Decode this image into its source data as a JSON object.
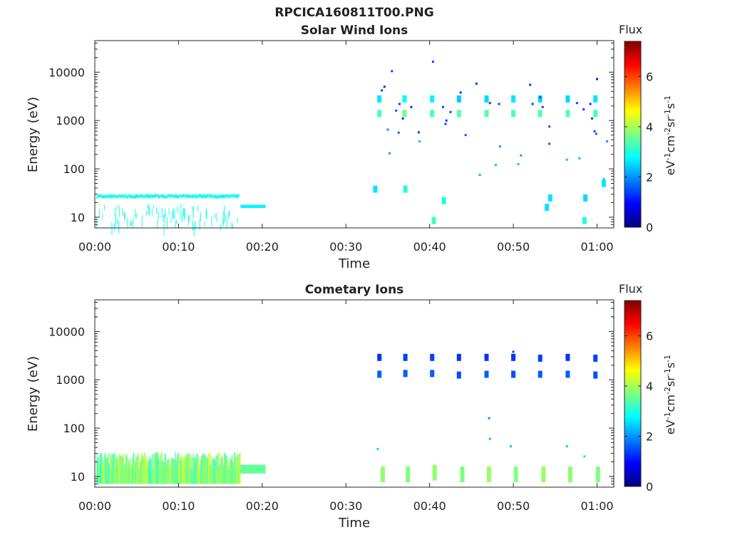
{
  "figure_title": "RPCICA160811T00.PNG",
  "colors": {
    "axis": "#262626",
    "colormap": [
      "#00007f",
      "#0000ff",
      "#007fff",
      "#00ffff",
      "#7fff7f",
      "#ffff00",
      "#ff7f00",
      "#ff0000",
      "#7f0000"
    ]
  },
  "chart_data": [
    {
      "type": "heatmap",
      "title": "Solar Wind Ions",
      "xlabel": "Time",
      "ylabel": "Energy (eV)",
      "xlim_minutes": [
        0,
        62
      ],
      "ylim": [
        6,
        45000
      ],
      "y_scale": "log",
      "x_ticks": [
        {
          "v": 0,
          "label": "00:00"
        },
        {
          "v": 10,
          "label": "00:10"
        },
        {
          "v": 20,
          "label": "00:20"
        },
        {
          "v": 30,
          "label": "00:30"
        },
        {
          "v": 40,
          "label": "00:40"
        },
        {
          "v": 50,
          "label": "00:50"
        },
        {
          "v": 60,
          "label": "01:00"
        }
      ],
      "y_ticks": [
        {
          "v": 10,
          "label": "10"
        },
        {
          "v": 100,
          "label": "100"
        },
        {
          "v": 1000,
          "label": "1000"
        },
        {
          "v": 10000,
          "label": "10000"
        }
      ],
      "colorbar": {
        "title": "Flux",
        "label_base": "eV",
        "label_units": [
          "-1",
          "cm",
          "-2",
          "sr",
          "-1",
          "s",
          "-1"
        ],
        "range": [
          0,
          7.4
        ],
        "ticks": [
          {
            "v": 0,
            "label": "0"
          },
          {
            "v": 2,
            "label": "2"
          },
          {
            "v": 4,
            "label": "4"
          },
          {
            "v": 6,
            "label": "6"
          }
        ]
      },
      "low_energy_band": {
        "t_start": 0.2,
        "t_end": 17.2,
        "energy_center": 27,
        "flux": 2.9
      },
      "plateau": {
        "t_start": 17.4,
        "t_end": 20.4,
        "energy_low": 15.5,
        "energy_high": 18,
        "flux": 2.7
      },
      "scan_cells": [
        {
          "t": 34.0,
          "e": 1400,
          "f": 3.3
        },
        {
          "t": 34.0,
          "e": 2800,
          "f": 2.6
        },
        {
          "t": 37.0,
          "e": 1400,
          "f": 3.6
        },
        {
          "t": 37.0,
          "e": 2800,
          "f": 2.8
        },
        {
          "t": 40.3,
          "e": 1400,
          "f": 3.3
        },
        {
          "t": 40.3,
          "e": 2800,
          "f": 2.7
        },
        {
          "t": 43.5,
          "e": 1400,
          "f": 3.4
        },
        {
          "t": 43.5,
          "e": 2800,
          "f": 2.4
        },
        {
          "t": 46.8,
          "e": 1400,
          "f": 3.4
        },
        {
          "t": 46.8,
          "e": 2800,
          "f": 2.5
        },
        {
          "t": 50.0,
          "e": 1400,
          "f": 3.3
        },
        {
          "t": 50.0,
          "e": 2800,
          "f": 2.6
        },
        {
          "t": 53.2,
          "e": 1400,
          "f": 3.4
        },
        {
          "t": 53.2,
          "e": 2800,
          "f": 2.5
        },
        {
          "t": 56.5,
          "e": 1400,
          "f": 3.4
        },
        {
          "t": 56.5,
          "e": 2800,
          "f": 2.5
        },
        {
          "t": 59.8,
          "e": 1400,
          "f": 3.3
        },
        {
          "t": 59.8,
          "e": 2800,
          "f": 2.6
        },
        {
          "t": 33.5,
          "e": 38,
          "f": 2.6
        },
        {
          "t": 37.1,
          "e": 38,
          "f": 3.0
        },
        {
          "t": 40.5,
          "e": 8.5,
          "f": 3.2
        },
        {
          "t": 41.7,
          "e": 22,
          "f": 3.0
        },
        {
          "t": 54.0,
          "e": 16,
          "f": 2.6
        },
        {
          "t": 54.4,
          "e": 25,
          "f": 2.6
        },
        {
          "t": 58.5,
          "e": 8.5,
          "f": 3.0
        },
        {
          "t": 58.6,
          "e": 25,
          "f": 2.5
        },
        {
          "t": 60.8,
          "e": 50,
          "f": 2.6
        }
      ],
      "points": [
        {
          "t": 34.3,
          "e": 4200,
          "f": 1.4
        },
        {
          "t": 34.6,
          "e": 5000,
          "f": 1.2
        },
        {
          "t": 35.5,
          "e": 10500,
          "f": 1.4
        },
        {
          "t": 35.0,
          "e": 650,
          "f": 2.0
        },
        {
          "t": 35.2,
          "e": 210,
          "f": 2.1
        },
        {
          "t": 36.0,
          "e": 1600,
          "f": 1.5
        },
        {
          "t": 36.4,
          "e": 2200,
          "f": 1.4
        },
        {
          "t": 36.8,
          "e": 1100,
          "f": 1.3
        },
        {
          "t": 36.3,
          "e": 560,
          "f": 1.6
        },
        {
          "t": 37.8,
          "e": 1900,
          "f": 1.3
        },
        {
          "t": 38.7,
          "e": 570,
          "f": 1.4
        },
        {
          "t": 38.8,
          "e": 370,
          "f": 2.2
        },
        {
          "t": 40.4,
          "e": 16500,
          "f": 1.4
        },
        {
          "t": 41.6,
          "e": 1900,
          "f": 1.5
        },
        {
          "t": 42.0,
          "e": 1000,
          "f": 1.3
        },
        {
          "t": 41.9,
          "e": 850,
          "f": 1.4
        },
        {
          "t": 42.5,
          "e": 1500,
          "f": 1.4
        },
        {
          "t": 43.7,
          "e": 3800,
          "f": 1.3
        },
        {
          "t": 44.3,
          "e": 500,
          "f": 1.6
        },
        {
          "t": 45.6,
          "e": 5800,
          "f": 1.3
        },
        {
          "t": 46.0,
          "e": 75,
          "f": 2.3
        },
        {
          "t": 47.2,
          "e": 2300,
          "f": 1.4
        },
        {
          "t": 48.3,
          "e": 2200,
          "f": 1.4
        },
        {
          "t": 48.4,
          "e": 290,
          "f": 2.0
        },
        {
          "t": 47.9,
          "e": 120,
          "f": 2.3
        },
        {
          "t": 50.9,
          "e": 190,
          "f": 2.1
        },
        {
          "t": 50.6,
          "e": 125,
          "f": 2.4
        },
        {
          "t": 52.0,
          "e": 5500,
          "f": 1.3
        },
        {
          "t": 52.3,
          "e": 2200,
          "f": 1.4
        },
        {
          "t": 53.2,
          "e": 3000,
          "f": 1.4
        },
        {
          "t": 54.3,
          "e": 750,
          "f": 1.5
        },
        {
          "t": 53.5,
          "e": 1900,
          "f": 1.4
        },
        {
          "t": 54.3,
          "e": 330,
          "f": 1.6
        },
        {
          "t": 56.4,
          "e": 155,
          "f": 2.3
        },
        {
          "t": 57.6,
          "e": 2300,
          "f": 1.4
        },
        {
          "t": 57.9,
          "e": 165,
          "f": 2.2
        },
        {
          "t": 58.4,
          "e": 1700,
          "f": 1.4
        },
        {
          "t": 59.2,
          "e": 2200,
          "f": 1.3
        },
        {
          "t": 59.4,
          "e": 1100,
          "f": 1.4
        },
        {
          "t": 59.7,
          "e": 600,
          "f": 1.4
        },
        {
          "t": 59.9,
          "e": 530,
          "f": 1.6
        },
        {
          "t": 60.0,
          "e": 7200,
          "f": 1.2
        },
        {
          "t": 60.8,
          "e": 62,
          "f": 2.4
        },
        {
          "t": 61.2,
          "e": 370,
          "f": 2.0
        }
      ]
    },
    {
      "type": "heatmap",
      "title": "Cometary Ions",
      "xlabel": "Time",
      "ylabel": "Energy (eV)",
      "xlim_minutes": [
        0,
        62
      ],
      "ylim": [
        6,
        45000
      ],
      "y_scale": "log",
      "x_ticks": [
        {
          "v": 0,
          "label": "00:00"
        },
        {
          "v": 10,
          "label": "00:10"
        },
        {
          "v": 20,
          "label": "00:20"
        },
        {
          "v": 30,
          "label": "00:30"
        },
        {
          "v": 40,
          "label": "00:40"
        },
        {
          "v": 50,
          "label": "00:50"
        },
        {
          "v": 60,
          "label": "01:00"
        }
      ],
      "y_ticks": [
        {
          "v": 10,
          "label": "10"
        },
        {
          "v": 100,
          "label": "100"
        },
        {
          "v": 1000,
          "label": "1000"
        },
        {
          "v": 10000,
          "label": "10000"
        }
      ],
      "colorbar": {
        "title": "Flux",
        "label_base": "eV",
        "label_units": [
          "-1",
          "cm",
          "-2",
          "sr",
          "-1",
          "s",
          "-1"
        ],
        "range": [
          0,
          7.4
        ],
        "ticks": [
          {
            "v": 0,
            "label": "0"
          },
          {
            "v": 2,
            "label": "2"
          },
          {
            "v": 4,
            "label": "4"
          },
          {
            "v": 6,
            "label": "6"
          }
        ]
      },
      "low_energy_band": {
        "t_start": 0.2,
        "t_end": 17.3,
        "energy_low": 7,
        "energy_high": 32,
        "flux": 3.6
      },
      "plateau": {
        "t_start": 17.4,
        "t_end": 20.4,
        "energy_low": 11.5,
        "energy_high": 17.5,
        "flux": 3.5
      },
      "scan_cells": [
        {
          "t": 34.0,
          "e": 1300,
          "f": 1.6
        },
        {
          "t": 34.0,
          "e": 2900,
          "f": 1.3
        },
        {
          "t": 37.1,
          "e": 1350,
          "f": 1.6
        },
        {
          "t": 37.1,
          "e": 2900,
          "f": 1.4
        },
        {
          "t": 40.3,
          "e": 1350,
          "f": 1.6
        },
        {
          "t": 40.3,
          "e": 2900,
          "f": 1.4
        },
        {
          "t": 43.5,
          "e": 1250,
          "f": 1.5
        },
        {
          "t": 43.5,
          "e": 2900,
          "f": 1.3
        },
        {
          "t": 46.8,
          "e": 1300,
          "f": 1.6
        },
        {
          "t": 46.8,
          "e": 2900,
          "f": 1.3
        },
        {
          "t": 50.0,
          "e": 1300,
          "f": 1.5
        },
        {
          "t": 50.0,
          "e": 2900,
          "f": 1.3
        },
        {
          "t": 53.2,
          "e": 1300,
          "f": 1.6
        },
        {
          "t": 53.2,
          "e": 2800,
          "f": 1.4
        },
        {
          "t": 56.5,
          "e": 1300,
          "f": 1.6
        },
        {
          "t": 56.5,
          "e": 2900,
          "f": 1.3
        },
        {
          "t": 59.8,
          "e": 1250,
          "f": 1.5
        },
        {
          "t": 59.8,
          "e": 2800,
          "f": 1.4
        },
        {
          "t": 34.4,
          "e": 11,
          "f": 3.8
        },
        {
          "t": 37.4,
          "e": 11,
          "f": 3.7
        },
        {
          "t": 40.6,
          "e": 12,
          "f": 3.8
        },
        {
          "t": 43.9,
          "e": 11,
          "f": 3.7
        },
        {
          "t": 47.1,
          "e": 11,
          "f": 3.9
        },
        {
          "t": 50.3,
          "e": 11,
          "f": 3.7
        },
        {
          "t": 53.6,
          "e": 11,
          "f": 3.9
        },
        {
          "t": 56.8,
          "e": 11,
          "f": 3.8
        },
        {
          "t": 60.1,
          "e": 11,
          "f": 3.7
        }
      ],
      "points": [
        {
          "t": 33.8,
          "e": 37,
          "f": 2.5
        },
        {
          "t": 47.1,
          "e": 160,
          "f": 2.0
        },
        {
          "t": 47.2,
          "e": 60,
          "f": 2.3
        },
        {
          "t": 49.7,
          "e": 42,
          "f": 2.3
        },
        {
          "t": 50.0,
          "e": 3800,
          "f": 1.3
        },
        {
          "t": 56.4,
          "e": 42,
          "f": 2.4
        },
        {
          "t": 58.5,
          "e": 26,
          "f": 2.5
        }
      ]
    }
  ]
}
